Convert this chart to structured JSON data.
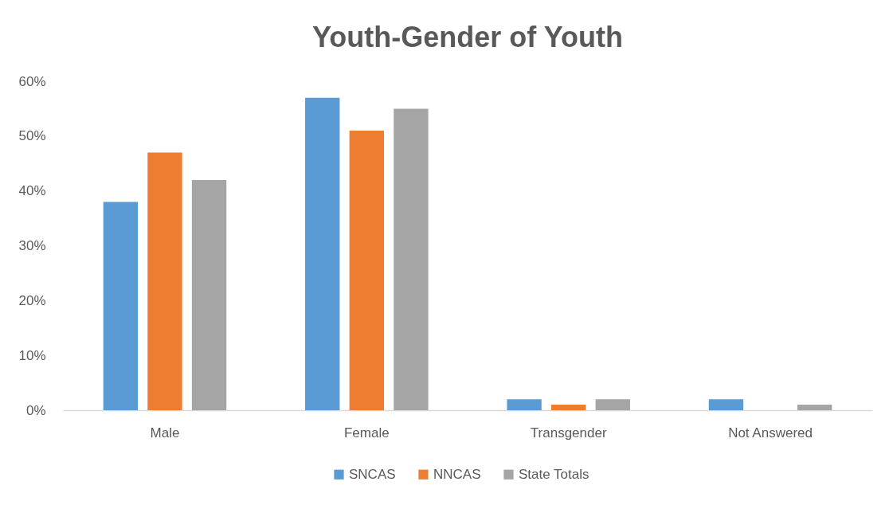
{
  "chart_data": {
    "type": "bar",
    "title": "Youth-Gender of Youth",
    "categories": [
      "Male",
      "Female",
      "Transgender",
      "Not Answered"
    ],
    "series": [
      {
        "name": "SNCAS",
        "color": "#5b9bd5",
        "values": [
          38,
          57,
          2,
          2
        ]
      },
      {
        "name": "NNCAS",
        "color": "#ed7d31",
        "values": [
          47,
          51,
          1,
          0
        ]
      },
      {
        "name": "State Totals",
        "color": "#a5a5a5",
        "values": [
          42,
          55,
          2,
          1
        ]
      }
    ],
    "ylim": [
      0,
      60
    ],
    "yticks": [
      {
        "value": 0,
        "label": "0%"
      },
      {
        "value": 10,
        "label": "10%"
      },
      {
        "value": 20,
        "label": "20%"
      },
      {
        "value": 30,
        "label": "30%"
      },
      {
        "value": 40,
        "label": "40%"
      },
      {
        "value": 50,
        "label": "50%"
      },
      {
        "value": 60,
        "label": "60%"
      }
    ],
    "legend": "bottom"
  }
}
